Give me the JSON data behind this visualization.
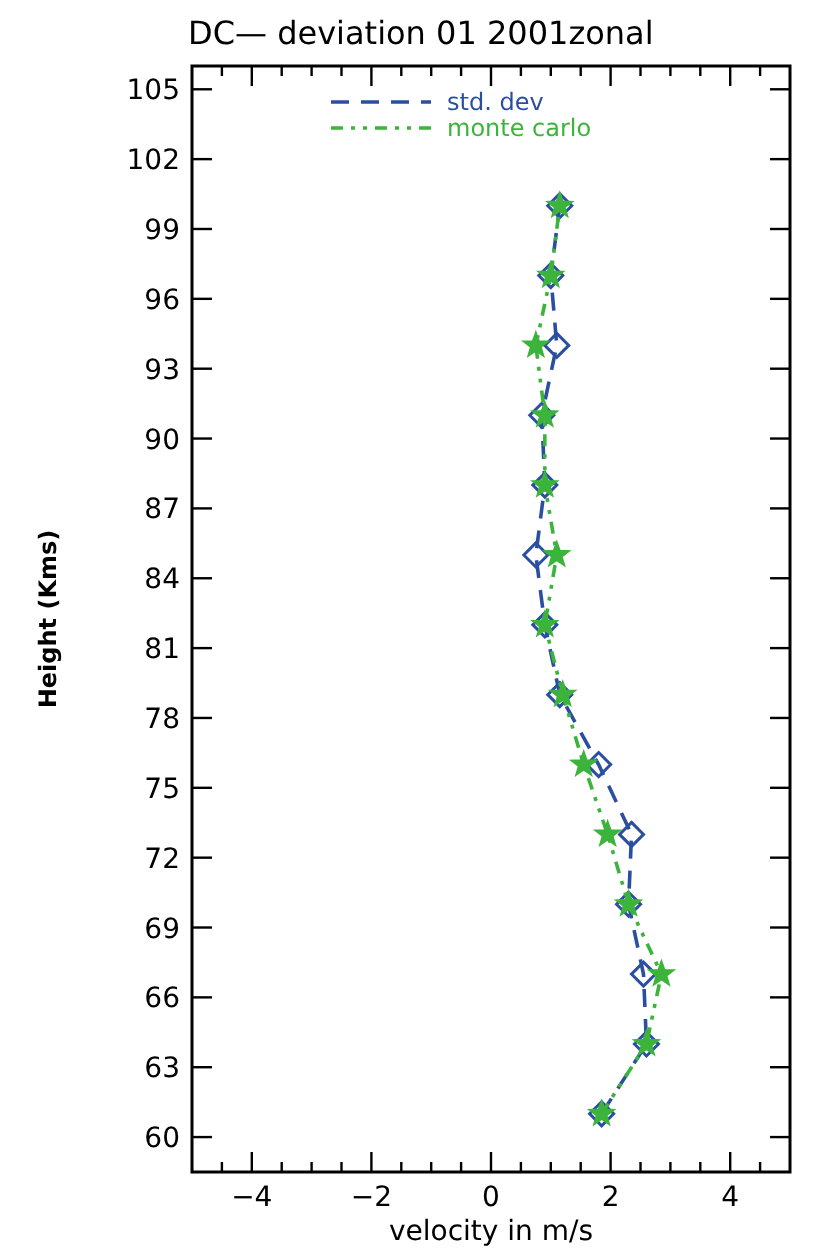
{
  "chart_data": {
    "type": "line",
    "title": "DC— deviation 01 2001zonal",
    "xlabel": "velocity in m/s",
    "ylabel": "Height (Kms)",
    "xlim": [
      -5,
      5
    ],
    "ylim": [
      58.5,
      106
    ],
    "xticks": [
      {
        "value": -4.5,
        "label": null
      },
      -4,
      {
        "value": -3.5,
        "label": null
      },
      {
        "value": -3,
        "label": null
      },
      {
        "value": -2.5,
        "label": null
      },
      -2,
      {
        "value": -1.5,
        "label": null
      },
      {
        "value": -1,
        "label": null
      },
      {
        "value": -0.5,
        "label": null
      },
      0,
      {
        "value": 0.5,
        "label": null
      },
      {
        "value": 1,
        "label": null
      },
      {
        "value": 1.5,
        "label": null
      },
      2,
      {
        "value": 2.5,
        "label": null
      },
      {
        "value": 3,
        "label": null
      },
      {
        "value": 3.5,
        "label": null
      },
      4,
      {
        "value": 4.5,
        "label": null
      }
    ],
    "yticks": [
      60,
      63,
      66,
      69,
      72,
      75,
      78,
      81,
      84,
      87,
      90,
      93,
      96,
      99,
      102,
      105
    ],
    "grid": false,
    "legend": "top",
    "series": [
      {
        "name": "std. dev",
        "color": "#2b4fa0",
        "marker": "diamond",
        "line_style": "dashed",
        "x": [
          1.85,
          2.6,
          2.55,
          2.3,
          2.35,
          1.8,
          1.15,
          0.9,
          0.75,
          0.9,
          0.85,
          1.1,
          1.0,
          1.15
        ],
        "values": [
          61,
          64,
          67,
          70,
          73,
          76,
          79,
          82,
          85,
          88,
          91,
          94,
          97,
          100
        ]
      },
      {
        "name": "monte carlo",
        "color": "#3cb43c",
        "marker": "star",
        "line_style": "dotted",
        "x": [
          1.85,
          2.6,
          2.85,
          2.3,
          1.95,
          1.55,
          1.2,
          0.9,
          1.1,
          0.9,
          0.9,
          0.75,
          1.0,
          1.15
        ],
        "values": [
          61,
          64,
          67,
          70,
          73,
          76,
          79,
          82,
          85,
          88,
          91,
          94,
          97,
          100
        ]
      }
    ]
  }
}
